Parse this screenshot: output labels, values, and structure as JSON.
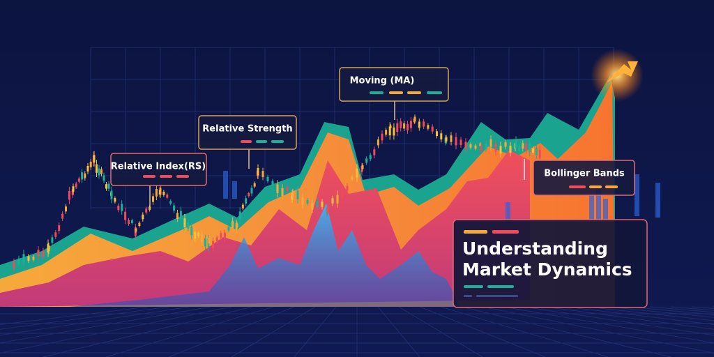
{
  "callouts": [
    {
      "label": "Relative Index(RS)"
    },
    {
      "label": "Relative Strength"
    },
    {
      "label": "Moving (MA)"
    },
    {
      "label": "Bollinger Bands"
    }
  ],
  "title": {
    "lines": [
      "Understanding",
      "Market Dynamics"
    ]
  }
}
